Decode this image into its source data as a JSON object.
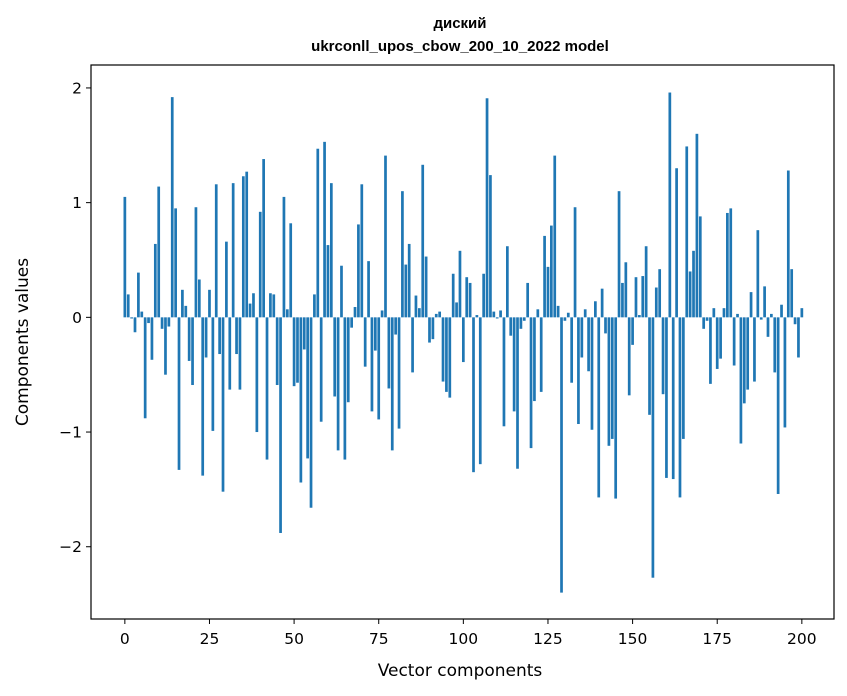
{
  "chart_data": {
    "type": "bar",
    "title": "диский",
    "subtitle": "ukrconll_upos_cbow_200_10_2022 model",
    "xlabel": "Vector components",
    "ylabel": "Components values",
    "xlim": [
      -10,
      209.5
    ],
    "ylim": [
      -2.63,
      2.2
    ],
    "xticks": [
      0,
      25,
      50,
      75,
      100,
      125,
      150,
      175,
      200
    ],
    "yticks": [
      -2,
      -1,
      0,
      1,
      2
    ],
    "ytick_labels": [
      "−2",
      "−1",
      "0",
      "1",
      "2"
    ],
    "grid": false,
    "bar_color": "#1f77b4",
    "values": [
      1.05,
      0.2,
      -0.01,
      -0.13,
      0.39,
      0.05,
      -0.88,
      -0.05,
      -0.37,
      0.64,
      1.14,
      -0.1,
      -0.5,
      -0.08,
      1.92,
      0.95,
      -1.33,
      0.24,
      0.1,
      -0.38,
      -0.59,
      0.96,
      0.33,
      -1.38,
      -0.35,
      0.24,
      -0.99,
      1.16,
      -0.32,
      -1.52,
      0.66,
      -0.63,
      1.17,
      -0.32,
      -0.63,
      1.23,
      1.27,
      0.12,
      0.21,
      -1.0,
      0.92,
      1.38,
      -1.24,
      0.21,
      0.2,
      -0.59,
      -1.88,
      1.05,
      0.07,
      0.82,
      -0.6,
      -0.57,
      -1.44,
      -0.28,
      -1.23,
      -1.66,
      0.2,
      1.47,
      -0.91,
      1.53,
      0.63,
      1.17,
      -0.69,
      -1.16,
      0.45,
      -1.24,
      -0.74,
      -0.09,
      0.09,
      0.81,
      1.16,
      -0.43,
      0.49,
      -0.82,
      -0.29,
      -0.89,
      0.06,
      1.41,
      -0.62,
      -1.16,
      -0.15,
      -0.97,
      1.1,
      0.46,
      0.64,
      -0.48,
      0.19,
      0.08,
      1.33,
      0.53,
      -0.22,
      -0.19,
      0.03,
      0.05,
      -0.56,
      -0.65,
      -0.7,
      0.38,
      0.13,
      0.58,
      -0.39,
      0.35,
      0.3,
      -1.35,
      0.02,
      -1.28,
      0.38,
      1.91,
      1.24,
      0.05,
      -0.01,
      0.06,
      -0.95,
      0.62,
      -0.16,
      -0.82,
      -1.32,
      -0.1,
      -0.03,
      0.3,
      -1.14,
      -0.73,
      0.07,
      -0.65,
      0.71,
      0.44,
      0.8,
      1.41,
      0.1,
      -2.4,
      -0.03,
      0.04,
      -0.57,
      0.96,
      -0.93,
      -0.35,
      0.07,
      -0.47,
      -0.98,
      0.14,
      -1.57,
      0.25,
      -0.14,
      -1.12,
      -1.06,
      -1.58,
      1.1,
      0.3,
      0.48,
      -0.68,
      -0.24,
      0.35,
      0.02,
      0.36,
      0.62,
      -0.85,
      -2.27,
      0.26,
      0.42,
      -0.67,
      -1.4,
      1.96,
      -1.41,
      1.3,
      -1.57,
      -1.06,
      1.49,
      0.4,
      0.58,
      1.6,
      0.88,
      -0.1,
      -0.03,
      -0.58,
      0.08,
      -0.45,
      -0.36,
      0.08,
      0.91,
      0.95,
      -0.42,
      0.03,
      -1.1,
      -0.75,
      -0.63,
      0.22,
      -0.56,
      0.76,
      -0.02,
      0.27,
      -0.17,
      0.03,
      -0.48,
      -1.54,
      0.11,
      -0.96,
      1.28,
      0.42,
      -0.06,
      -0.35,
      0.08
    ]
  }
}
